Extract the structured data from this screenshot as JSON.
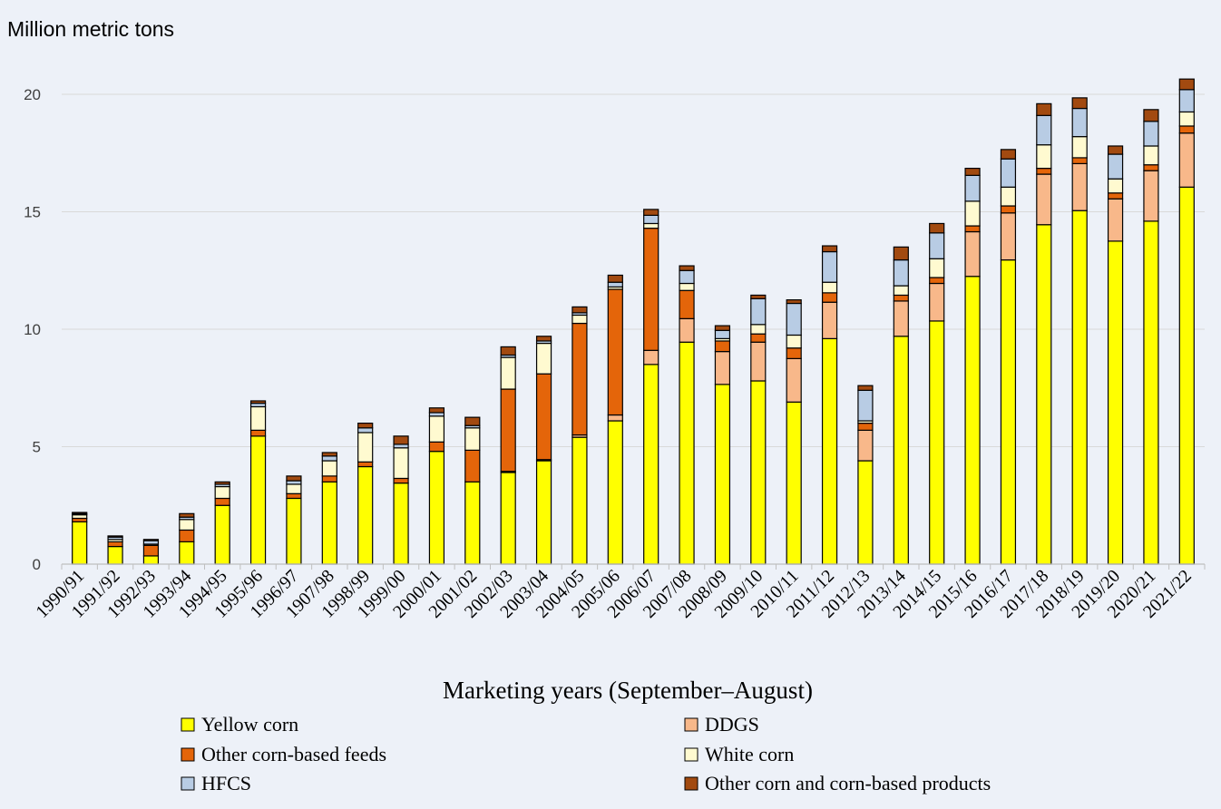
{
  "chart_data": {
    "type": "bar",
    "stacked": true,
    "title": "",
    "ylabel": "Million metric tons",
    "xlabel": "Marketing years (September–August)",
    "ylim": [
      0,
      21
    ],
    "yticks": [
      0,
      5,
      10,
      15,
      20
    ],
    "grid": true,
    "legend_position": "bottom",
    "categories": [
      "1990/91",
      "1991/92",
      "1992/93",
      "1993/94",
      "1994/95",
      "1995/96",
      "1996/97",
      "1907/98",
      "1998/99",
      "1999/00",
      "2000/01",
      "2001/02",
      "2002/03",
      "2003/04",
      "2004/05",
      "2005/06",
      "2006/07",
      "2007/08",
      "2008/09",
      "2009/10",
      "2010/11",
      "2011/12",
      "2012/13",
      "2013/14",
      "2014/15",
      "2015/16",
      "2016/17",
      "2017/18",
      "2018/19",
      "2019/20",
      "2020/21",
      "2021/22"
    ],
    "series": [
      {
        "name": "Yellow corn",
        "color": "#ffff00",
        "values": [
          1.8,
          0.75,
          0.35,
          0.95,
          2.5,
          5.45,
          2.8,
          3.5,
          4.15,
          3.45,
          4.8,
          3.5,
          3.9,
          4.4,
          5.4,
          6.1,
          8.5,
          9.45,
          7.65,
          7.8,
          6.9,
          9.6,
          4.4,
          9.7,
          10.35,
          12.25,
          12.95,
          14.45,
          15.05,
          13.75,
          14.6,
          16.05
        ]
      },
      {
        "name": "DDGS",
        "color": "#f8b88a",
        "values": [
          0,
          0,
          0,
          0,
          0,
          0,
          0,
          0,
          0,
          0,
          0,
          0,
          0.05,
          0.05,
          0.1,
          0.25,
          0.6,
          1.0,
          1.4,
          1.65,
          1.85,
          1.55,
          1.3,
          1.5,
          1.6,
          1.9,
          2.0,
          2.15,
          2.0,
          1.8,
          2.15,
          2.3
        ]
      },
      {
        "name": "Other corn-based feeds",
        "color": "#e4650a",
        "values": [
          0.15,
          0.2,
          0.45,
          0.5,
          0.3,
          0.25,
          0.2,
          0.25,
          0.2,
          0.2,
          0.4,
          1.35,
          3.5,
          3.65,
          4.75,
          5.35,
          5.2,
          1.2,
          0.45,
          0.35,
          0.45,
          0.4,
          0.3,
          0.25,
          0.25,
          0.25,
          0.3,
          0.25,
          0.25,
          0.25,
          0.25,
          0.3
        ]
      },
      {
        "name": "White corn",
        "color": "#fffad0",
        "values": [
          0.15,
          0.1,
          0.05,
          0.45,
          0.5,
          1.0,
          0.4,
          0.65,
          1.25,
          1.3,
          1.1,
          0.95,
          1.35,
          1.3,
          0.35,
          0.1,
          0.2,
          0.3,
          0.1,
          0.4,
          0.55,
          0.45,
          0.1,
          0.4,
          0.8,
          1.05,
          0.8,
          1.0,
          0.9,
          0.6,
          0.8,
          0.6
        ]
      },
      {
        "name": "HFCS",
        "color": "#b8cce4",
        "values": [
          0.05,
          0.1,
          0.15,
          0.1,
          0.1,
          0.15,
          0.15,
          0.2,
          0.2,
          0.15,
          0.15,
          0.1,
          0.1,
          0.1,
          0.1,
          0.2,
          0.35,
          0.55,
          0.35,
          1.1,
          1.35,
          1.3,
          1.3,
          1.1,
          1.1,
          1.1,
          1.2,
          1.25,
          1.2,
          1.05,
          1.05,
          0.95
        ]
      },
      {
        "name": "Other corn and corn-based products",
        "color": "#a24a10",
        "values": [
          0.05,
          0.05,
          0.05,
          0.15,
          0.1,
          0.1,
          0.2,
          0.15,
          0.2,
          0.35,
          0.2,
          0.35,
          0.35,
          0.2,
          0.25,
          0.3,
          0.25,
          0.2,
          0.2,
          0.15,
          0.15,
          0.25,
          0.2,
          0.55,
          0.4,
          0.3,
          0.4,
          0.5,
          0.45,
          0.35,
          0.5,
          0.45
        ]
      }
    ]
  }
}
